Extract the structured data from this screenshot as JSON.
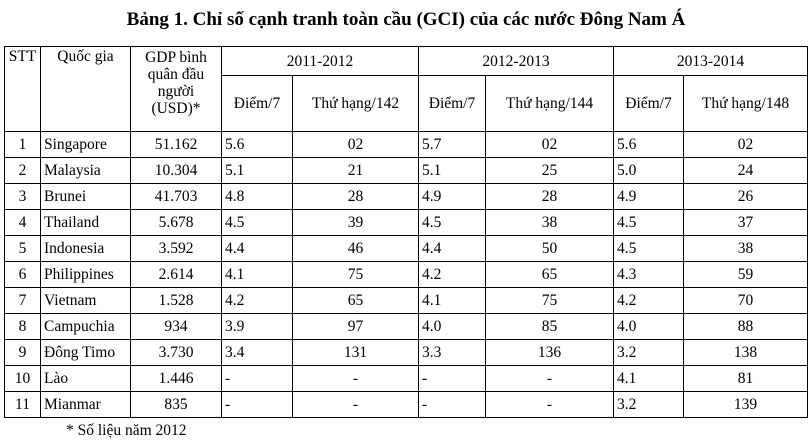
{
  "title": "Bảng 1. Chỉ số cạnh tranh toàn cầu (GCI) của các nước Đông Nam Á",
  "headers": {
    "stt": "STT",
    "country": "Quốc gia",
    "gdp": "GDP bình quân đầu người (USD)*",
    "periods": [
      "2011-2012",
      "2012-2013",
      "2013-2014"
    ],
    "sub": [
      {
        "score": "Điểm/7",
        "rank": "Thứ hạng/142"
      },
      {
        "score": "Điểm/7",
        "rank": "Thứ hạng/144"
      },
      {
        "score": "Điểm/7",
        "rank": "Thứ hạng/148"
      }
    ]
  },
  "rows": [
    {
      "stt": "1",
      "country": "Singapore",
      "gdp": "51.162",
      "s1": "5.6",
      "r1": "02",
      "s2": "5.7",
      "r2": "02",
      "s3": "5.6",
      "r3": "02"
    },
    {
      "stt": "2",
      "country": "Malaysia",
      "gdp": "10.304",
      "s1": "5.1",
      "r1": "21",
      "s2": "5.1",
      "r2": "25",
      "s3": "5.0",
      "r3": "24"
    },
    {
      "stt": "3",
      "country": "Brunei",
      "gdp": "41.703",
      "s1": "4.8",
      "r1": "28",
      "s2": "4.9",
      "r2": "28",
      "s3": "4.9",
      "r3": "26"
    },
    {
      "stt": "4",
      "country": "Thailand",
      "gdp": "5.678",
      "s1": "4.5",
      "r1": "39",
      "s2": "4.5",
      "r2": "38",
      "s3": "4.5",
      "r3": "37"
    },
    {
      "stt": "5",
      "country": "Indonesia",
      "gdp": "3.592",
      "s1": "4.4",
      "r1": "46",
      "s2": "4.4",
      "r2": "50",
      "s3": "4.5",
      "r3": "38"
    },
    {
      "stt": "6",
      "country": "Philippines",
      "gdp": "2.614",
      "s1": "4.1",
      "r1": "75",
      "s2": "4.2",
      "r2": "65",
      "s3": "4.3",
      "r3": "59"
    },
    {
      "stt": "7",
      "country": "Vietnam",
      "gdp": "1.528",
      "s1": "4.2",
      "r1": "65",
      "s2": "4.1",
      "r2": "75",
      "s3": "4.2",
      "r3": "70"
    },
    {
      "stt": "8",
      "country": "Campuchia",
      "gdp": "934",
      "s1": "3.9",
      "r1": "97",
      "s2": "4.0",
      "r2": "85",
      "s3": "4.0",
      "r3": "88"
    },
    {
      "stt": "9",
      "country": "Đông Timo",
      "gdp": "3.730",
      "s1": "3.4",
      "r1": "131",
      "s2": "3.3",
      "r2": "136",
      "s3": "3.2",
      "r3": "138"
    },
    {
      "stt": "10",
      "country": "Lào",
      "gdp": "1.446",
      "s1": "-",
      "r1": "-",
      "s2": "-",
      "r2": "-",
      "s3": "4.1",
      "r3": "81"
    },
    {
      "stt": "11",
      "country": "Mianmar",
      "gdp": "835",
      "s1": "-",
      "r1": "-",
      "s2": "-",
      "r2": "-",
      "s3": "3.2",
      "r3": "139"
    }
  ],
  "footnote": "* Số liệu năm 2012"
}
